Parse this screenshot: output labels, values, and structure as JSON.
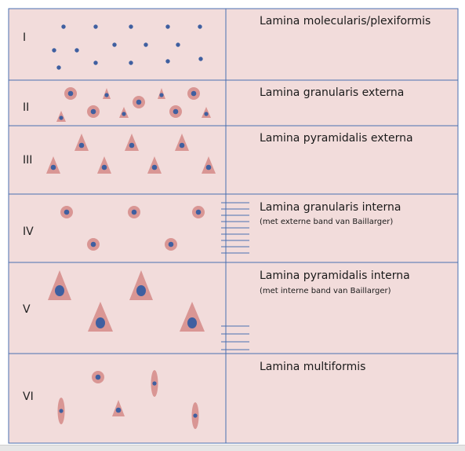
{
  "layers": [
    {
      "numeral": "I",
      "name": "Lamina molecularis/plexiformis",
      "note": ""
    },
    {
      "numeral": "II",
      "name": "Lamina granularis externa",
      "note": ""
    },
    {
      "numeral": "III",
      "name": "Lamina pyramidalis externa",
      "note": ""
    },
    {
      "numeral": "IV",
      "name": "Lamina granularis interna",
      "note": "(met externe band van Baillarger)"
    },
    {
      "numeral": "V",
      "name": "Lamina pyramidalis interna",
      "note": "(met interne band van Baillarger)"
    },
    {
      "numeral": "VI",
      "name": "Lamina multiformis",
      "note": ""
    }
  ],
  "colors": {
    "background": "#f2dcdb",
    "lines": "#4a6fb0",
    "cell_body": "#d99694",
    "nucleus": "#3f5fa0"
  }
}
